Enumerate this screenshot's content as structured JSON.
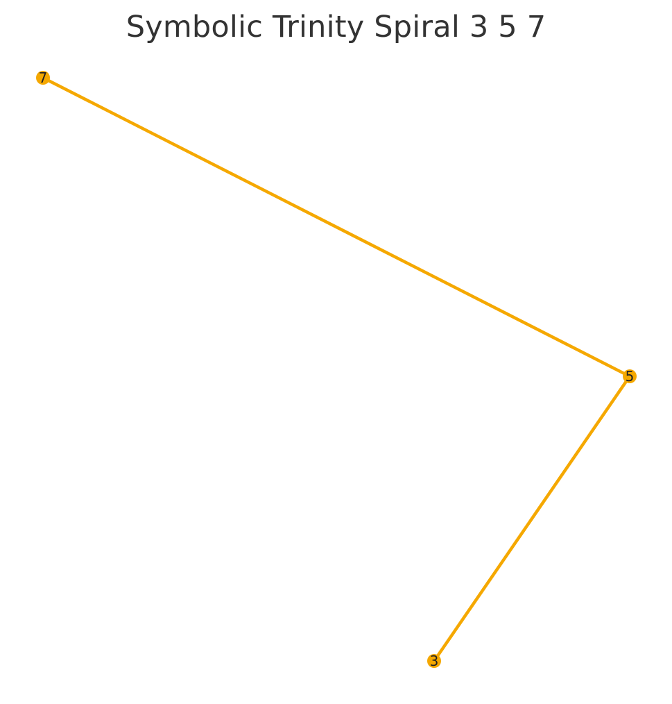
{
  "title": "Symbolic Trinity Spiral 3 5 7",
  "colors": {
    "edge": "#F5A800",
    "node": "#F5A800",
    "label": "#222222",
    "title": "#333333"
  },
  "nodes": [
    {
      "id": "n3",
      "label": "3"
    },
    {
      "id": "n5",
      "label": "5"
    },
    {
      "id": "n7",
      "label": "7"
    }
  ],
  "edges": [
    {
      "from": "n3",
      "to": "n5"
    },
    {
      "from": "n5",
      "to": "n7"
    }
  ]
}
